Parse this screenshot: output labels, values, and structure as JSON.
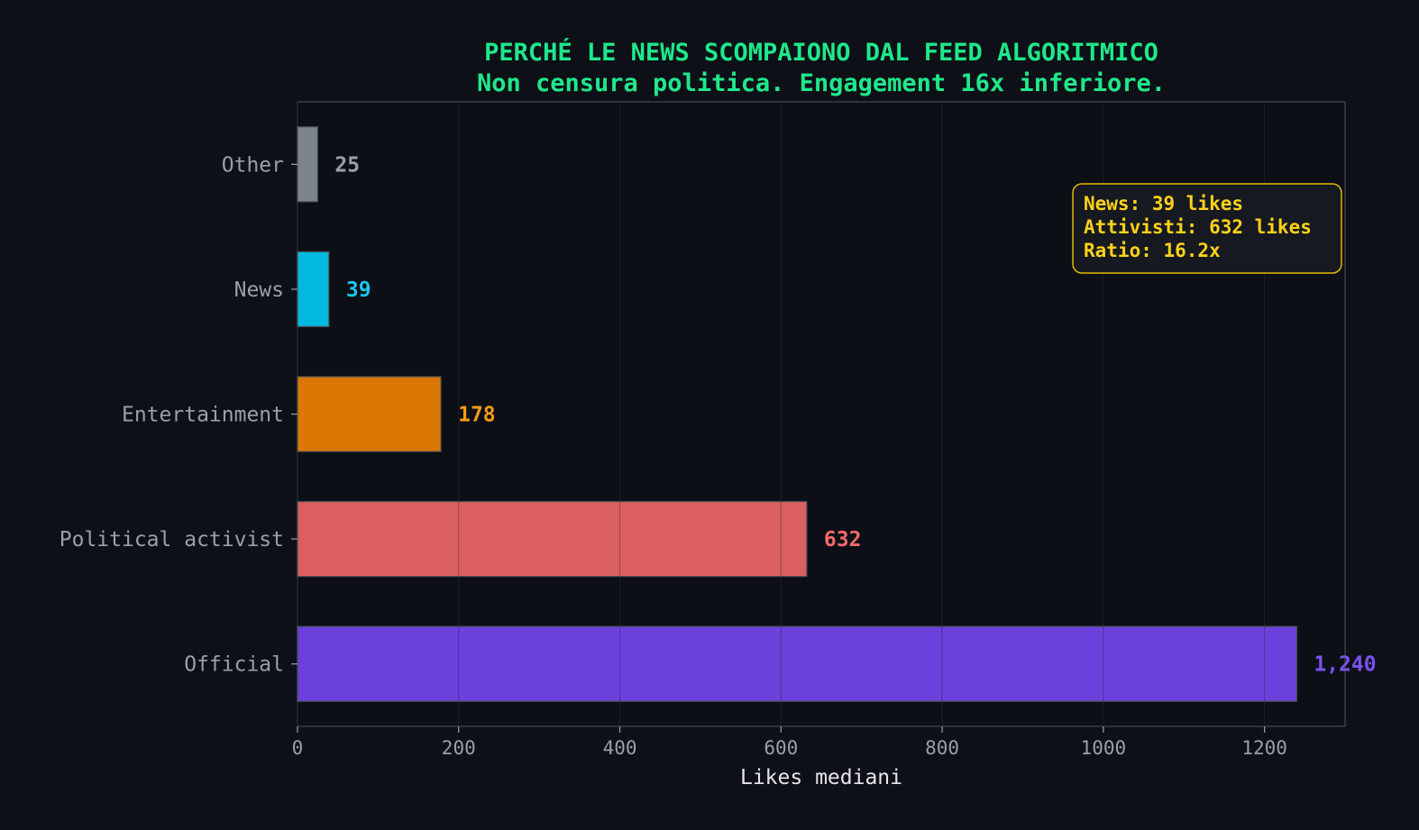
{
  "chart_data": {
    "type": "bar",
    "orientation": "horizontal",
    "title": "PERCHÉ LE NEWS SCOMPAIONO DAL FEED ALGORITMICO",
    "subtitle": "Non censura politica. Engagement 16x inferiore.",
    "xlabel": "Likes mediani",
    "ylabel": "",
    "categories": [
      "Other",
      "News",
      "Entertainment",
      "Political activist",
      "Official"
    ],
    "values": [
      25,
      39,
      178,
      632,
      1240
    ],
    "value_labels": [
      "25",
      "39",
      "178",
      "632",
      "1,240"
    ],
    "colors": [
      "#7d838d",
      "#00b8e0",
      "#db7804",
      "#dc5f5f",
      "#6a42db"
    ],
    "label_colors": [
      "#9aa0a8",
      "#19c8f0",
      "#f59b16",
      "#f06a6a",
      "#7a52f0"
    ],
    "xlim": [
      0,
      1300
    ],
    "xticks": [
      0,
      200,
      400,
      600,
      800,
      1000,
      1200
    ],
    "xtick_labels": [
      "0",
      "200",
      "400",
      "600",
      "800",
      "1000",
      "1200"
    ],
    "grid": "x",
    "annotation": {
      "lines": [
        "News: 39 likes",
        "Attivisti: 632 likes",
        "Ratio: 16.2x"
      ],
      "placement": "top-right",
      "color": "#ffd21a"
    }
  },
  "theme": {
    "background": "#0d1017",
    "title_color": "#1fe88a",
    "axis_color": "#3a3e46"
  }
}
